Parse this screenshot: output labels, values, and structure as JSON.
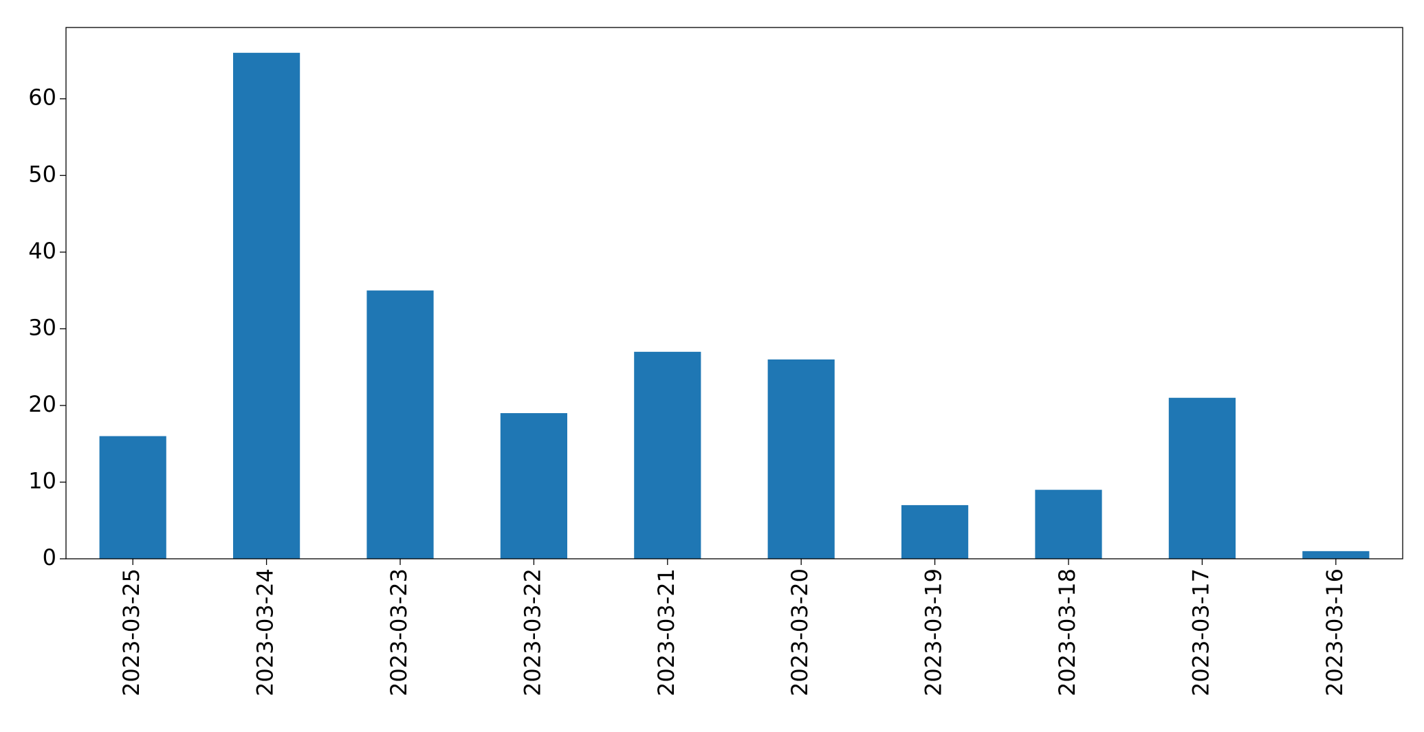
{
  "chart_data": {
    "type": "bar",
    "categories": [
      "2023-03-25",
      "2023-03-24",
      "2023-03-23",
      "2023-03-22",
      "2023-03-21",
      "2023-03-20",
      "2023-03-19",
      "2023-03-18",
      "2023-03-17",
      "2023-03-16"
    ],
    "values": [
      16,
      66,
      35,
      19,
      27,
      26,
      7,
      9,
      21,
      1
    ],
    "color": "#1f77b4",
    "ylim": [
      0,
      69.3
    ],
    "yticks": [
      0,
      10,
      20,
      30,
      40,
      50,
      60
    ],
    "grid": false
  }
}
